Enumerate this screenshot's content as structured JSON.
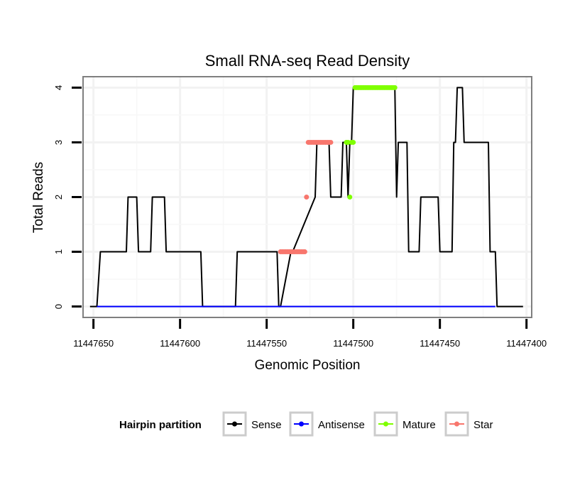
{
  "chart_data": {
    "type": "line",
    "title": "Small RNA-seq Read Density",
    "xlabel": "Genomic Position",
    "ylabel": "Total Reads",
    "xlim": [
      11447656,
      11447397
    ],
    "ylim": [
      -0.2,
      4.2
    ],
    "x_reversed": true,
    "x_ticks": [
      11447650,
      11447600,
      11447550,
      11447500,
      11447450,
      11447400
    ],
    "x_tick_labels": [
      "11447650",
      "11447600",
      "11447550",
      "11447500",
      "11447450",
      "11447400"
    ],
    "y_ticks": [
      0,
      1,
      2,
      3,
      4
    ],
    "y_tick_labels": [
      "0",
      "1",
      "2",
      "3",
      "4"
    ],
    "grid": true,
    "legend": {
      "title": "Hairpin partition",
      "placement": "bottom",
      "entries": [
        "Sense",
        "Antisense",
        "Mature",
        "Star"
      ]
    },
    "series": [
      {
        "name": "Sense",
        "color": "#000000",
        "kind": "line",
        "x": [
          11447652,
          11447648,
          11447646,
          11447631,
          11447630,
          11447625,
          11447624,
          11447617,
          11447616,
          11447609,
          11447608,
          11447588,
          11447587,
          11447568,
          11447567,
          11447544,
          11447543,
          11447542,
          11447536,
          11447535,
          11447522,
          11447521,
          11447514,
          11447513,
          11447507,
          11447506,
          11447504,
          11447503,
          11447502,
          11447501,
          11447500,
          11447498,
          11447497,
          11447492,
          11447491,
          11447476,
          11447475,
          11447474,
          11447473,
          11447469,
          11447468,
          11447462,
          11447461,
          11447451,
          11447450,
          11447443,
          11447442,
          11447441,
          11447440,
          11447437,
          11447436,
          11447422,
          11447421,
          11447418,
          11447417,
          11447402
        ],
        "y": [
          0,
          0,
          1,
          1,
          2,
          2,
          1,
          1,
          2,
          2,
          1,
          1,
          0,
          0,
          1,
          1,
          0,
          0,
          1,
          1,
          2,
          3,
          3,
          2,
          2,
          3,
          3,
          2,
          3,
          3,
          4,
          4,
          4,
          4,
          4,
          4,
          2,
          3,
          3,
          3,
          1,
          1,
          2,
          2,
          1,
          1,
          3,
          3,
          4,
          4,
          3,
          3,
          1,
          1,
          0,
          0
        ]
      },
      {
        "name": "Antisense",
        "color": "#0000ff",
        "kind": "line",
        "x": [
          11447648,
          11447418
        ],
        "y": [
          0,
          0
        ]
      },
      {
        "name": "Mature",
        "color": "#7fff00",
        "kind": "points",
        "x": [
          11447504,
          11447503,
          11447502,
          11447501,
          11447500,
          11447499,
          11447498,
          11447497,
          11447496,
          11447495,
          11447494,
          11447493,
          11447492,
          11447491,
          11447490,
          11447489,
          11447488,
          11447487,
          11447486,
          11447485,
          11447484,
          11447483,
          11447482,
          11447481,
          11447480,
          11447479,
          11447478,
          11447477,
          11447476
        ],
        "y": [
          3,
          3,
          2,
          3,
          3,
          4,
          4,
          4,
          4,
          4,
          4,
          4,
          4,
          4,
          4,
          4,
          4,
          4,
          4,
          4,
          4,
          4,
          4,
          4,
          4,
          4,
          4,
          4,
          4
        ]
      },
      {
        "name": "Star",
        "color": "#f8766d",
        "kind": "points",
        "x": [
          11447542,
          11447541,
          11447540,
          11447539,
          11447538,
          11447537,
          11447536,
          11447535,
          11447534,
          11447533,
          11447532,
          11447531,
          11447530,
          11447529,
          11447528,
          11447527,
          11447526,
          11447525,
          11447524,
          11447523,
          11447522,
          11447521,
          11447520,
          11447519,
          11447518,
          11447517,
          11447516,
          11447515,
          11447514,
          11447513
        ],
        "y": [
          1,
          1,
          1,
          1,
          1,
          1,
          1,
          1,
          1,
          1,
          1,
          1,
          1,
          1,
          1,
          2,
          3,
          3,
          3,
          3,
          3,
          3,
          3,
          3,
          3,
          3,
          3,
          3,
          3,
          3
        ]
      }
    ]
  }
}
